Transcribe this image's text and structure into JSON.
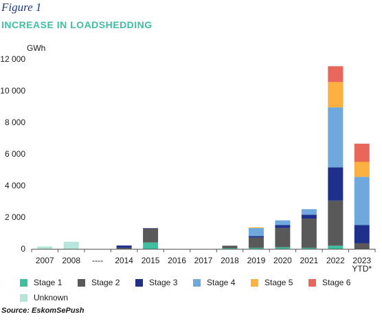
{
  "figure_label": "Figure 1",
  "source": "Source: EskomSePush",
  "colors": {
    "title": "#3dbfa0",
    "figure_label": "#1e3a8a",
    "axis": "#555555",
    "grid": "#d9d9d9"
  },
  "chart_data": {
    "type": "bar",
    "stacked": true,
    "title": "INCREASE IN LOADSHEDDING",
    "ylabel": "GWh",
    "xlabel": "",
    "ylim": [
      0,
      12000
    ],
    "yticks": [
      0,
      2000,
      4000,
      6000,
      8000,
      10000,
      12000
    ],
    "ytick_labels": [
      "0",
      "2 000",
      "4 000",
      "6 000",
      "8 000",
      "10 000",
      "12 000"
    ],
    "grid": false,
    "legend_position": "bottom",
    "categories": [
      "2007",
      "2008",
      "----",
      "2014",
      "2015",
      "2016",
      "2017",
      "2018",
      "2019",
      "2020",
      "2021",
      "2022",
      "2023 YTD*"
    ],
    "category_lines": [
      [
        "2007"
      ],
      [
        "2008"
      ],
      [
        "----"
      ],
      [
        "2014"
      ],
      [
        "2015"
      ],
      [
        "2016"
      ],
      [
        "2017"
      ],
      [
        "2018"
      ],
      [
        "2019"
      ],
      [
        "2020"
      ],
      [
        "2021"
      ],
      [
        "2022"
      ],
      [
        "2023",
        "YTD*"
      ]
    ],
    "series": [
      {
        "name": "Stage 1",
        "color": "#3dbfa0",
        "values": [
          0,
          0,
          0,
          0,
          400,
          0,
          0,
          40,
          60,
          100,
          60,
          200,
          0
        ]
      },
      {
        "name": "Stage 2",
        "color": "#595959",
        "values": [
          0,
          0,
          0,
          60,
          880,
          0,
          0,
          160,
          650,
          1220,
          1850,
          2850,
          350
        ]
      },
      {
        "name": "Stage 3",
        "color": "#1f2f8c",
        "values": [
          0,
          0,
          0,
          150,
          30,
          0,
          0,
          0,
          100,
          180,
          250,
          2100,
          1150
        ]
      },
      {
        "name": "Stage 4",
        "color": "#6fa8dc",
        "values": [
          0,
          0,
          0,
          0,
          0,
          0,
          0,
          0,
          500,
          300,
          350,
          3800,
          3050
        ]
      },
      {
        "name": "Stage 5",
        "color": "#fbb040",
        "values": [
          0,
          0,
          0,
          0,
          0,
          0,
          0,
          0,
          50,
          0,
          0,
          1600,
          950
        ]
      },
      {
        "name": "Stage 6",
        "color": "#e8675a",
        "values": [
          0,
          0,
          0,
          0,
          0,
          0,
          0,
          0,
          0,
          0,
          0,
          1000,
          1150
        ]
      },
      {
        "name": "Unknown",
        "color": "#b3e5d9",
        "values": [
          150,
          450,
          0,
          0,
          0,
          0,
          0,
          0,
          0,
          0,
          0,
          0,
          0
        ]
      }
    ]
  }
}
